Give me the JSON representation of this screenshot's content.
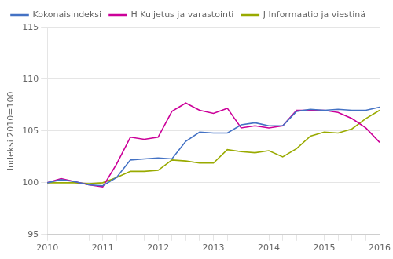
{
  "chart_data": {
    "type": "line",
    "categories": [
      "2010",
      null,
      null,
      null,
      "2011",
      null,
      null,
      null,
      "2012",
      null,
      null,
      null,
      "2013",
      null,
      null,
      null,
      "2014",
      null,
      null,
      null,
      "2015",
      null,
      null,
      null,
      "2016"
    ],
    "ylabel": "Indeksi 2010=100",
    "ylim": [
      95,
      115
    ],
    "yticks": [
      95,
      100,
      105,
      110,
      115
    ],
    "grid": "y",
    "legend": "upper left",
    "series": [
      {
        "name": "Kokonaisindeksi",
        "color": "#4472C4",
        "values": [
          100.0,
          100.3,
          100.1,
          99.8,
          99.7,
          100.5,
          102.2,
          102.3,
          102.4,
          102.3,
          104.0,
          104.9,
          104.8,
          104.8,
          105.6,
          105.8,
          105.5,
          105.5,
          106.9,
          107.1,
          107.0,
          107.1,
          107.0,
          107.0,
          107.3
        ]
      },
      {
        "name": "H Kuljetus ja varastointi",
        "color": "#CC0099",
        "values": [
          100.0,
          100.4,
          100.1,
          99.8,
          99.6,
          101.8,
          104.4,
          104.2,
          104.4,
          106.9,
          107.7,
          107.0,
          106.7,
          107.2,
          105.3,
          105.5,
          105.3,
          105.5,
          107.0,
          107.0,
          107.0,
          106.8,
          106.2,
          105.3,
          103.9
        ]
      },
      {
        "name": "J Informaatio ja viestinä",
        "color": "#99AA00",
        "values": [
          100.0,
          100.0,
          100.0,
          99.9,
          100.0,
          100.5,
          101.1,
          101.1,
          101.2,
          102.2,
          102.1,
          101.9,
          101.9,
          103.2,
          103.0,
          102.9,
          103.1,
          102.5,
          103.3,
          104.5,
          104.9,
          104.8,
          105.2,
          106.2,
          107.0
        ]
      }
    ]
  }
}
